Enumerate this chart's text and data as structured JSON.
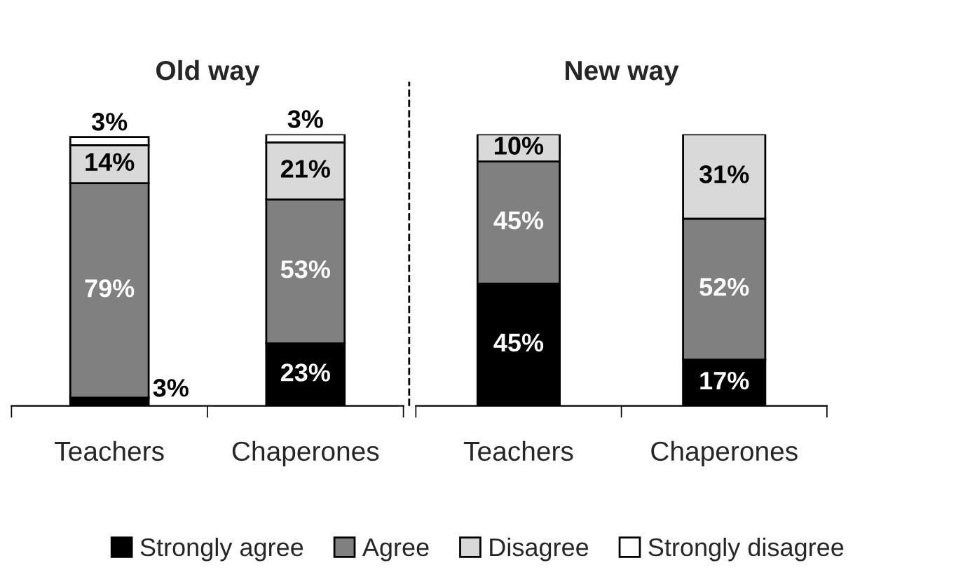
{
  "chart_data": [
    {
      "type": "bar",
      "stacked": true,
      "title": "Old way",
      "categories": [
        "Teachers",
        "Chaperones"
      ],
      "legend": "bottom",
      "tick_labels": "x",
      "series": [
        {
          "name": "Strongly agree",
          "color": "#000000",
          "values": [
            3,
            23
          ],
          "value_labels": [
            "3%",
            "23%"
          ]
        },
        {
          "name": "Agree",
          "color": "#808080",
          "values": [
            79,
            53
          ],
          "value_labels": [
            "79%",
            "53%"
          ]
        },
        {
          "name": "Disagree",
          "color": "#d9d9d9",
          "values": [
            14,
            21
          ],
          "value_labels": [
            "14%",
            "21%"
          ]
        },
        {
          "name": "Strongly disagree",
          "color": "#ffffff",
          "values": [
            3,
            3
          ],
          "value_labels": [
            "3%",
            "3%"
          ]
        }
      ]
    },
    {
      "type": "bar",
      "stacked": true,
      "title": "New way",
      "categories": [
        "Teachers",
        "Chaperones"
      ],
      "tick_labels": "x",
      "series": [
        {
          "color": "#000000",
          "values": [
            45,
            17
          ],
          "value_labels": [
            "45%",
            "17%"
          ]
        },
        {
          "color": "#808080",
          "values": [
            45,
            52
          ],
          "value_labels": [
            "45%",
            "52%"
          ]
        },
        {
          "color": "#d9d9d9",
          "values": [
            10,
            31
          ],
          "value_labels": [
            "10%",
            "31%"
          ]
        }
      ]
    }
  ]
}
